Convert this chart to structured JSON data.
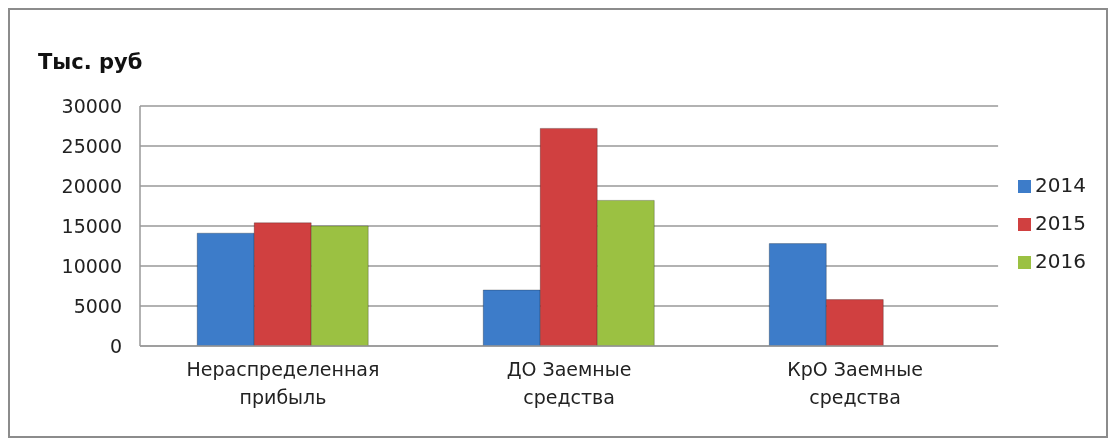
{
  "chart_data": {
    "type": "bar",
    "title": "Тыс. руб",
    "categories": [
      "Нераспределенная прибыль",
      "ДО Заемные средства",
      "КрО Заемные средства"
    ],
    "series": [
      {
        "name": "2014",
        "color": "#3d7cc9",
        "values": [
          14100,
          7000,
          12800
        ]
      },
      {
        "name": "2015",
        "color": "#d04040",
        "values": [
          15400,
          27200,
          5800
        ]
      },
      {
        "name": "2016",
        "color": "#9bc142",
        "values": [
          15000,
          18200,
          null
        ]
      }
    ],
    "ylim": [
      0,
      30000
    ],
    "yticks": [
      0,
      5000,
      10000,
      15000,
      20000,
      25000,
      30000
    ],
    "grid": "y",
    "legend": "right"
  }
}
